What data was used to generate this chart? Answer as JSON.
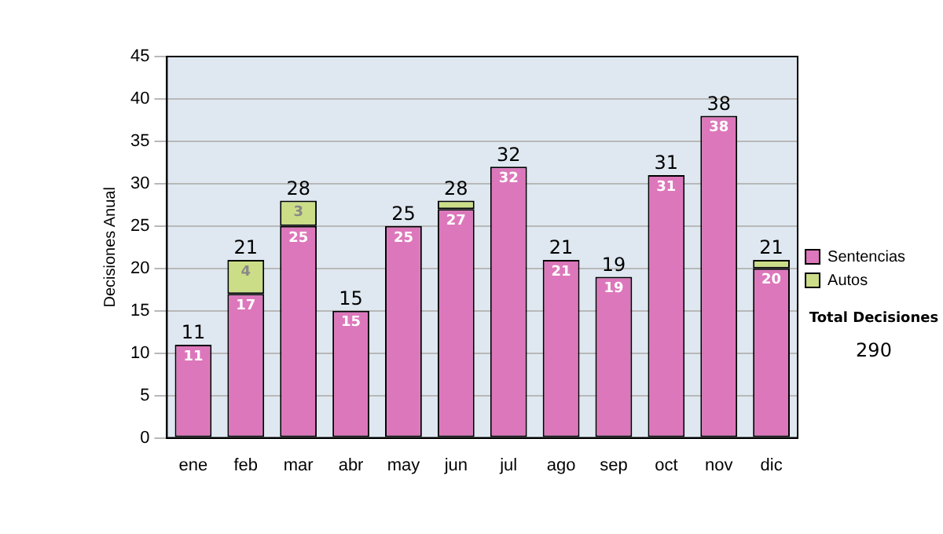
{
  "chart_data": {
    "type": "bar",
    "ylabel": "Decisiones Anual",
    "stacked": true,
    "categories": [
      "ene",
      "feb",
      "mar",
      "abr",
      "may",
      "jun",
      "jul",
      "ago",
      "sep",
      "oct",
      "nov",
      "dic"
    ],
    "series": [
      {
        "name": "Sentencias",
        "color": "#dd77bb",
        "values": [
          11,
          17,
          25,
          15,
          25,
          27,
          32,
          21,
          19,
          31,
          38,
          20
        ],
        "value_labels": [
          "11",
          "17",
          "25",
          "15",
          "25",
          "27",
          "32",
          "21",
          "19",
          "31",
          "38",
          "20"
        ]
      },
      {
        "name": "Autos",
        "color": "#ccdd88",
        "values": [
          0,
          4,
          3,
          0,
          0,
          1,
          0,
          0,
          0,
          0,
          0,
          1
        ],
        "value_labels": [
          null,
          "4",
          "3",
          null,
          null,
          null,
          null,
          null,
          null,
          null,
          null,
          null
        ]
      }
    ],
    "totals": [
      "11",
      "21",
      "28",
      "15",
      "25",
      "28",
      "32",
      "21",
      "19",
      "31",
      "38",
      "21"
    ],
    "ylim": [
      0,
      45
    ],
    "yticks": [
      0,
      5,
      10,
      15,
      20,
      25,
      30,
      35,
      40,
      45
    ],
    "grid": "y",
    "legend": "right",
    "annotations": [
      "Total Decisiones",
      "290"
    ]
  }
}
